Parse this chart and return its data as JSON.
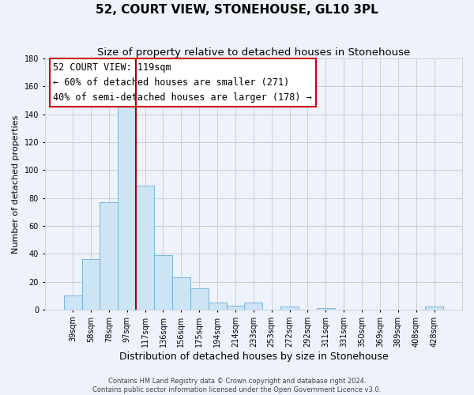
{
  "title": "52, COURT VIEW, STONEHOUSE, GL10 3PL",
  "subtitle": "Size of property relative to detached houses in Stonehouse",
  "xlabel": "Distribution of detached houses by size in Stonehouse",
  "ylabel": "Number of detached properties",
  "bar_labels": [
    "39sqm",
    "58sqm",
    "78sqm",
    "97sqm",
    "117sqm",
    "136sqm",
    "156sqm",
    "175sqm",
    "194sqm",
    "214sqm",
    "233sqm",
    "253sqm",
    "272sqm",
    "292sqm",
    "311sqm",
    "331sqm",
    "350sqm",
    "369sqm",
    "389sqm",
    "408sqm",
    "428sqm"
  ],
  "bar_values": [
    10,
    36,
    77,
    146,
    89,
    39,
    23,
    15,
    5,
    3,
    5,
    0,
    2,
    0,
    1,
    0,
    0,
    0,
    0,
    0,
    2
  ],
  "bar_color": "#cde4f5",
  "bar_edge_color": "#6aafd6",
  "background_color": "#eef2fa",
  "grid_color": "#c5cfe0",
  "vline_color": "#aa0000",
  "vline_x_index": 4,
  "annotation_title": "52 COURT VIEW: 119sqm",
  "annotation_line1": "← 60% of detached houses are smaller (271)",
  "annotation_line2": "40% of semi-detached houses are larger (178) →",
  "ylim": [
    0,
    180
  ],
  "yticks": [
    0,
    20,
    40,
    60,
    80,
    100,
    120,
    140,
    160,
    180
  ],
  "footer1": "Contains HM Land Registry data © Crown copyright and database right 2024.",
  "footer2": "Contains public sector information licensed under the Open Government Licence v3.0.",
  "title_fontsize": 11,
  "subtitle_fontsize": 9.5,
  "xlabel_fontsize": 9,
  "ylabel_fontsize": 8,
  "annotation_fontsize": 8.5,
  "tick_fontsize": 7,
  "footer_fontsize": 6
}
